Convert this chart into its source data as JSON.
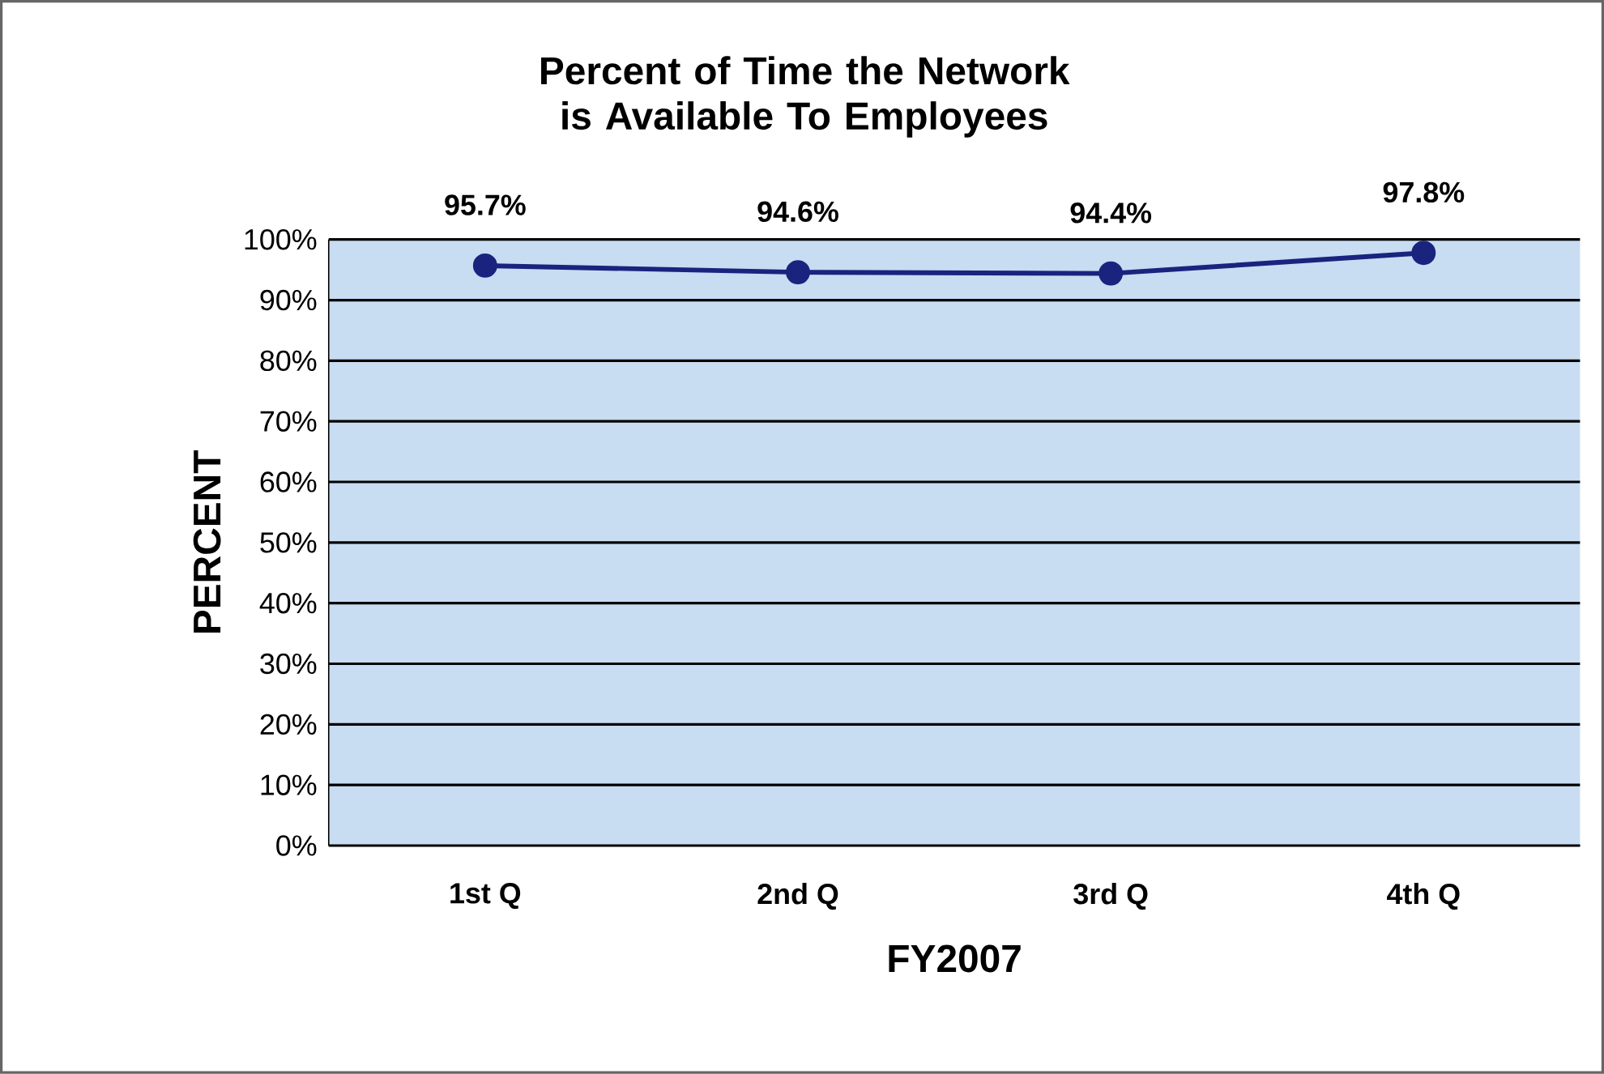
{
  "chart_data": {
    "type": "line",
    "title": "Percent of Time the Network is Available To Employees",
    "xlabel": "FY2007",
    "ylabel": "PERCENT",
    "categories": [
      "1st Q",
      "2nd Q",
      "3rd Q",
      "4th Q"
    ],
    "series": [
      {
        "color": "#1a237e",
        "values": [
          95.7,
          94.6,
          94.4,
          97.8
        ],
        "value_labels": [
          "95.7%",
          "94.6%",
          "94.4%",
          "97.8%"
        ]
      }
    ],
    "ylim": [
      0,
      100
    ],
    "yticks": [
      {
        "value": 0,
        "label": "0%"
      },
      {
        "value": 10,
        "label": "10%"
      },
      {
        "value": 20,
        "label": "20%"
      },
      {
        "value": 30,
        "label": "30%"
      },
      {
        "value": 40,
        "label": "40%"
      },
      {
        "value": 50,
        "label": "50%"
      },
      {
        "value": 60,
        "label": "60%"
      },
      {
        "value": 70,
        "label": "70%"
      },
      {
        "value": 80,
        "label": "80%"
      },
      {
        "value": 90,
        "label": "90%"
      },
      {
        "value": 100,
        "label": "100%"
      }
    ],
    "grid": "y",
    "marker": "circle",
    "line_style": "solid"
  }
}
